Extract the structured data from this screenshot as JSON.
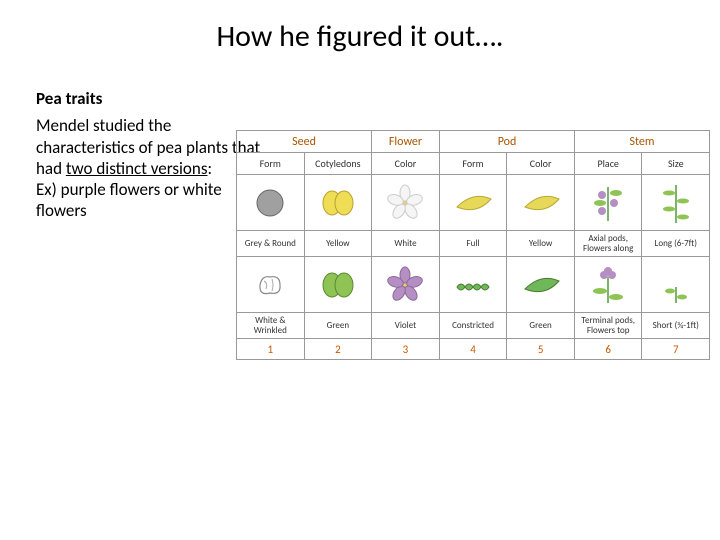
{
  "title": "How he figured it out….",
  "text": {
    "heading": "Pea traits",
    "line1": "Mendel studied the characteristics of pea plants that had ",
    "underlined": "two distinct versions",
    "colon": ":",
    "line2": "Ex) purple flowers or white flowers"
  },
  "colors": {
    "cat_text": "#aa5500",
    "num_text": "#cc5500",
    "border": "#999999",
    "seed_grey": "#a0a0a0",
    "seed_yellow": "#eedd55",
    "seed_green": "#8fc455",
    "flower_white": "#f5f5f5",
    "flower_violet": "#b58fc4",
    "pod_yellow": "#e8d85a",
    "pod_green": "#6fb85a",
    "stem_green": "#7ab56a"
  },
  "table": {
    "categories": [
      {
        "label": "Seed",
        "span": 2
      },
      {
        "label": "Flower",
        "span": 1
      },
      {
        "label": "Pod",
        "span": 2
      },
      {
        "label": "Stem",
        "span": 2
      }
    ],
    "columns": [
      {
        "sub": "Form",
        "dom": {
          "icon": "seed-round-grey",
          "label": "Grey & Round"
        },
        "rec": {
          "icon": "seed-wrinkled-white",
          "label": "White & Wrinkled"
        },
        "num": "1"
      },
      {
        "sub": "Cotyledons",
        "dom": {
          "icon": "cotyledon-yellow",
          "label": "Yellow"
        },
        "rec": {
          "icon": "cotyledon-green",
          "label": "Green"
        },
        "num": "2"
      },
      {
        "sub": "Color",
        "dom": {
          "icon": "flower-white",
          "label": "White"
        },
        "rec": {
          "icon": "flower-violet",
          "label": "Violet"
        },
        "num": "3"
      },
      {
        "sub": "Form",
        "dom": {
          "icon": "pod-full",
          "label": "Full"
        },
        "rec": {
          "icon": "pod-constricted",
          "label": "Constricted"
        },
        "num": "4"
      },
      {
        "sub": "Color",
        "dom": {
          "icon": "pod-yellow",
          "label": "Yellow"
        },
        "rec": {
          "icon": "pod-green",
          "label": "Green"
        },
        "num": "5"
      },
      {
        "sub": "Place",
        "dom": {
          "icon": "stem-axial",
          "label": "Axial pods, Flowers along"
        },
        "rec": {
          "icon": "stem-terminal",
          "label": "Terminal pods, Flowers top"
        },
        "num": "6"
      },
      {
        "sub": "Size",
        "dom": {
          "icon": "stem-long",
          "label": "Long (6-7ft)"
        },
        "rec": {
          "icon": "stem-short",
          "label": "Short (¾-1ft)"
        },
        "num": "7"
      }
    ]
  }
}
